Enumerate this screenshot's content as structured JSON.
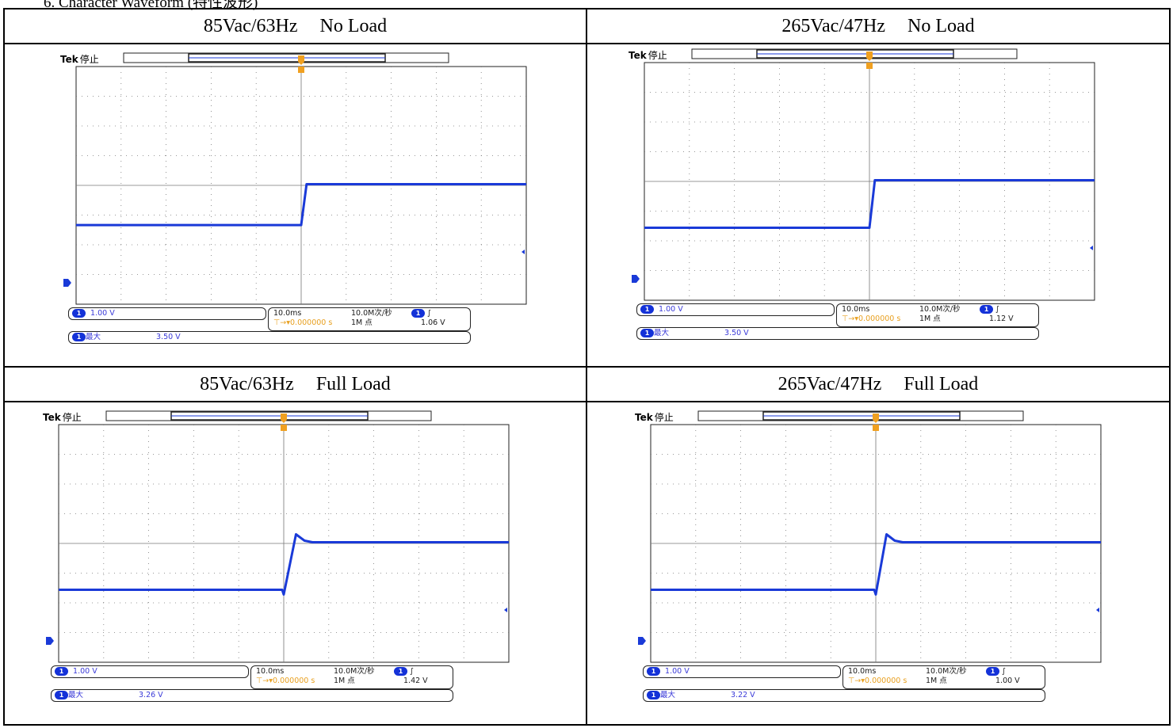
{
  "heading": "6. Character Waveform (特性波形)",
  "rows": [
    {
      "cells": [
        {
          "volt": "85Vac/63Hz",
          "load": "No Load"
        },
        {
          "volt": "265Vac/47Hz",
          "load": "No Load"
        }
      ]
    },
    {
      "cells": [
        {
          "volt": "85Vac/63Hz",
          "load": "Full Load"
        },
        {
          "volt": "265Vac/47Hz",
          "load": "Full Load"
        }
      ]
    }
  ],
  "scopes": [
    {
      "brand": "Tek",
      "status": "停止",
      "ch_scale": "1.00 V",
      "timebase": "10.0ms",
      "sample_rate": "10.0M次/秒",
      "trigger_offset": "0.000000 s",
      "record_length": "1M 点",
      "trigger_level": "1.06 V",
      "meas_label": "最大",
      "meas_value": "3.50 V",
      "ch_num": "1"
    },
    {
      "brand": "Tek",
      "status": "停止",
      "ch_scale": "1.00 V",
      "timebase": "10.0ms",
      "sample_rate": "10.0M次/秒",
      "trigger_offset": "0.000000 s",
      "record_length": "1M 点",
      "trigger_level": "1.12 V",
      "meas_label": "最大",
      "meas_value": "3.50 V",
      "ch_num": "1"
    },
    {
      "brand": "Tek",
      "status": "停止",
      "ch_scale": "1.00 V",
      "timebase": "10.0ms",
      "sample_rate": "10.0M次/秒",
      "trigger_offset": "0.000000 s",
      "record_length": "1M 点",
      "trigger_level": "1.42 V",
      "meas_label": "最大",
      "meas_value": "3.26 V",
      "ch_num": "1"
    },
    {
      "brand": "Tek",
      "status": "停止",
      "ch_scale": "1.00 V",
      "timebase": "10.0ms",
      "sample_rate": "10.0M次/秒",
      "trigger_offset": "0.000000 s",
      "record_length": "1M 点",
      "trigger_level": "1.00 V",
      "meas_label": "最大",
      "meas_value": "3.22 V",
      "ch_num": "1"
    }
  ],
  "colors": {
    "trace": "#1a3ad8",
    "trigger": "#f0a020",
    "grid": "#333333"
  }
}
